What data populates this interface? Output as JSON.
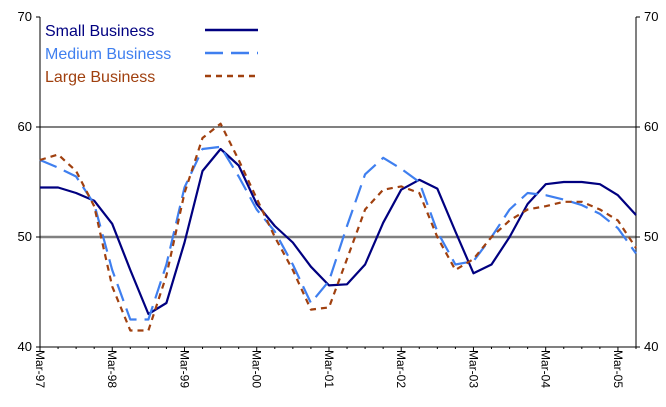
{
  "chart_data": {
    "type": "line",
    "title": "",
    "xlabel": "",
    "ylabel": "",
    "ylim": [
      40,
      70
    ],
    "y_ticks": [
      "40",
      "50",
      "60",
      "70"
    ],
    "right_axis_ticks": [
      "40",
      "50",
      "60",
      "70"
    ],
    "reference_line": 50,
    "grid": "horizontal at 60 only",
    "legend_position": "top-left",
    "x_tick_labels": [
      "Mar-97",
      "Mar-98",
      "Mar-99",
      "Mar-00",
      "Mar-01",
      "Mar-02",
      "Mar-03",
      "Mar-04",
      "Mar-05"
    ],
    "x": [
      "Mar-97",
      "Jun-97",
      "Sep-97",
      "Dec-97",
      "Mar-98",
      "Jun-98",
      "Sep-98",
      "Dec-98",
      "Mar-99",
      "Jun-99",
      "Sep-99",
      "Dec-99",
      "Mar-00",
      "Jun-00",
      "Sep-00",
      "Dec-00",
      "Mar-01",
      "Jun-01",
      "Sep-01",
      "Dec-01",
      "Mar-02",
      "Jun-02",
      "Sep-02",
      "Dec-02",
      "Mar-03",
      "Jun-03",
      "Sep-03",
      "Dec-03",
      "Mar-04",
      "Jun-04",
      "Sep-04",
      "Dec-04",
      "Mar-05",
      "Jun-05"
    ],
    "series": [
      {
        "name": "Small Business",
        "color": "#000080",
        "style": "solid",
        "values": [
          54.5,
          54.5,
          54.0,
          53.3,
          51.2,
          47.0,
          43.0,
          44.0,
          49.5,
          56.0,
          58.0,
          56.5,
          53.0,
          51.0,
          49.5,
          47.3,
          45.6,
          45.7,
          47.5,
          51.3,
          54.3,
          55.2,
          54.4,
          50.5,
          46.7,
          47.5,
          50.0,
          53.0,
          54.8,
          55.0,
          55.0,
          54.8,
          53.8,
          52.0
        ]
      },
      {
        "name": "Medium Business",
        "color": "#3F7FEF",
        "style": "dashed",
        "values": [
          57.0,
          56.3,
          55.5,
          53.0,
          47.0,
          42.5,
          42.5,
          47.5,
          54.5,
          58.0,
          58.2,
          55.5,
          52.5,
          50.5,
          47.5,
          44.0,
          46.0,
          51.0,
          55.7,
          57.2,
          56.2,
          55.0,
          50.5,
          47.5,
          47.8,
          50.0,
          52.5,
          54.0,
          53.8,
          53.4,
          52.9,
          52.1,
          50.8,
          48.5
        ]
      },
      {
        "name": "Large Business",
        "color": "#A0400F",
        "style": "short-dashed",
        "values": [
          57.0,
          57.5,
          56.0,
          52.8,
          45.5,
          41.5,
          41.5,
          46.5,
          54.0,
          59.0,
          60.3,
          57.0,
          53.5,
          50.0,
          47.0,
          43.4,
          43.6,
          48.0,
          52.5,
          54.3,
          54.6,
          54.0,
          50.0,
          47.0,
          48.0,
          50.0,
          51.5,
          52.5,
          52.8,
          53.2,
          53.2,
          52.5,
          51.5,
          49.0
        ]
      }
    ]
  }
}
